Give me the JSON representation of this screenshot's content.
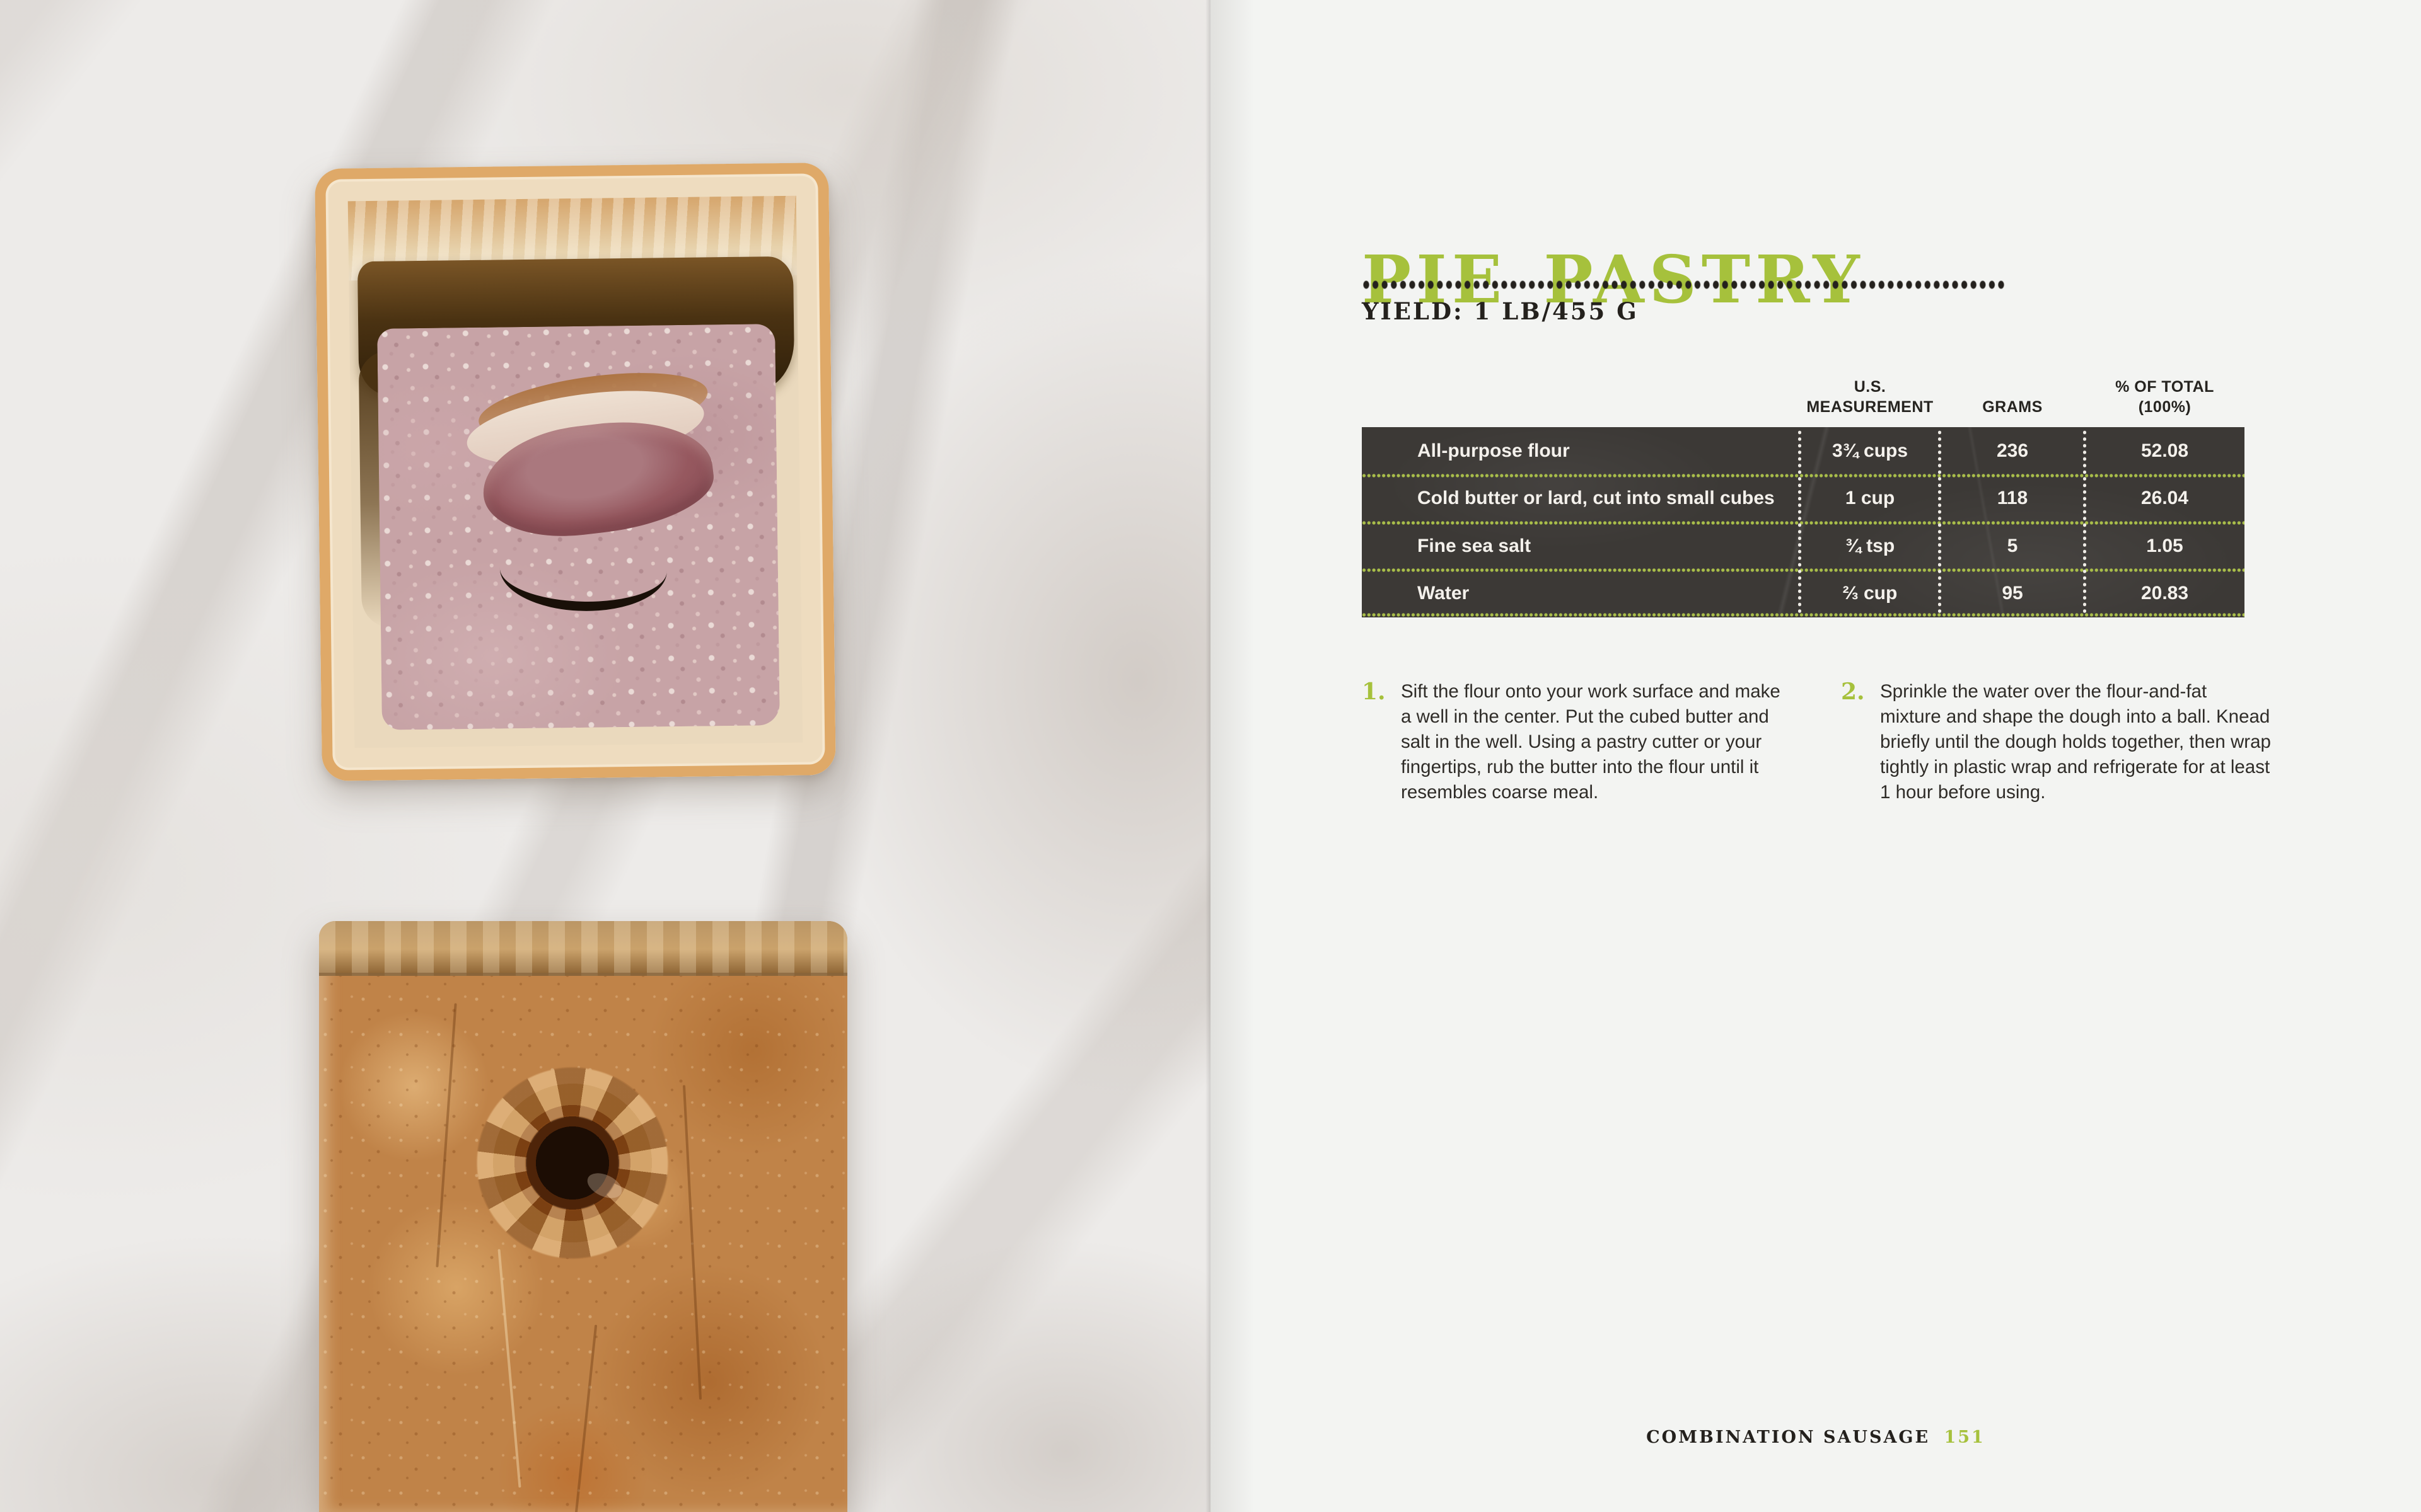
{
  "title": "PIE PASTRY",
  "yield": "YIELD: 1 LB/455 G",
  "table": {
    "headers": {
      "us_line1": "U.S.",
      "us_line2": "MEASUREMENT",
      "grams": "GRAMS",
      "pct_line1": "% OF TOTAL",
      "pct_line2": "(100%)"
    },
    "rows": [
      {
        "ingredient": "All-purpose flour",
        "us": "3¾ cups",
        "grams": "236",
        "pct": "52.08"
      },
      {
        "ingredient": "Cold butter or lard, cut into small cubes",
        "us": "1 cup",
        "grams": "118",
        "pct": "26.04"
      },
      {
        "ingredient": "Fine sea salt",
        "us": "¾ tsp",
        "grams": "5",
        "pct": "1.05"
      },
      {
        "ingredient": "Water",
        "us": "⅔ cup",
        "grams": "95",
        "pct": "20.83"
      }
    ]
  },
  "steps": [
    {
      "number": "1.",
      "text": "Sift the flour onto your work surface and make a well in the center. Put the cubed butter and salt in the well. Using a pastry cutter or your fingertips, rub the butter into the flour until it resembles coarse meal."
    },
    {
      "number": "2.",
      "text": "Sprinkle the water over the flour-and-fat mixture and shape the dough into a ball. Knead briefly until the dough holds together, then wrap tightly in plastic wrap and refrigerate for at least 1 hour before using."
    }
  ],
  "footer": {
    "chapter": "COMBINATION SAUSAGE",
    "page": "151"
  },
  "colors": {
    "accent_green": "#a6c13c",
    "table_background": "#3c3936",
    "text_dark": "#2d2a26",
    "page_background": "#f3f4f2"
  }
}
